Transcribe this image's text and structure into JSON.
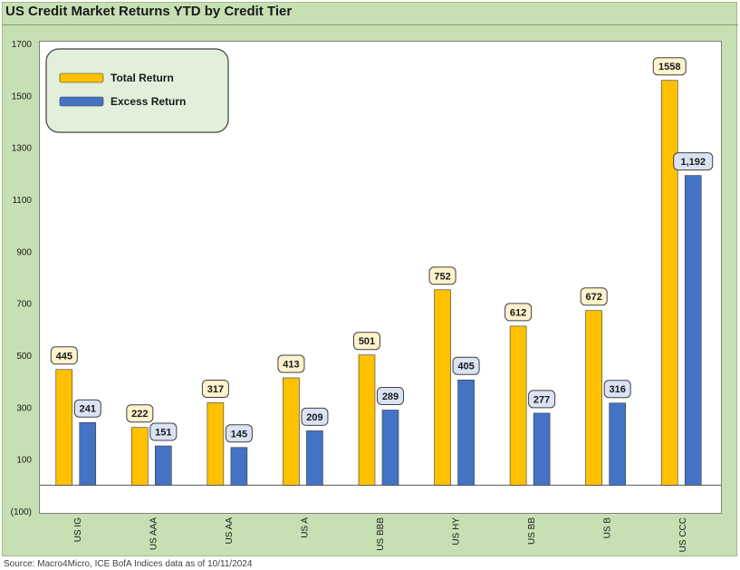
{
  "chart_data": {
    "type": "bar",
    "title": "US Credit Market Returns YTD by Credit Tier",
    "categories": [
      "US IG",
      "US AAA",
      "US AA",
      "US A",
      "US BBB",
      "US HY",
      "US BB",
      "US B",
      "US CCC"
    ],
    "series": [
      {
        "name": "Total Return",
        "color": "#ffc000",
        "label_fill": "#fff2cc",
        "values": [
          445,
          222,
          317,
          413,
          501,
          752,
          612,
          672,
          1558
        ],
        "labels": [
          "445",
          "222",
          "317",
          "413",
          "501",
          "752",
          "612",
          "672",
          "1558"
        ]
      },
      {
        "name": "Excess Return",
        "color": "#4472c4",
        "label_fill": "#dae3f3",
        "values": [
          241,
          151,
          145,
          209,
          289,
          405,
          277,
          316,
          1192
        ],
        "labels": [
          "241",
          "151",
          "145",
          "209",
          "289",
          "405",
          "277",
          "316",
          "1,192"
        ]
      }
    ],
    "ylim": [
      -100,
      1700
    ],
    "yticks": [
      -100,
      100,
      300,
      500,
      700,
      900,
      1100,
      1300,
      1500,
      1700
    ],
    "ytick_labels": [
      "(100)",
      "100",
      "300",
      "500",
      "700",
      "900",
      "1100",
      "1300",
      "1500",
      "1700"
    ],
    "grid": false,
    "legend_position": "top-left"
  },
  "source_note": "Source: Macro4Micro, ICE BofA Indices     data as of 10/11/2024"
}
